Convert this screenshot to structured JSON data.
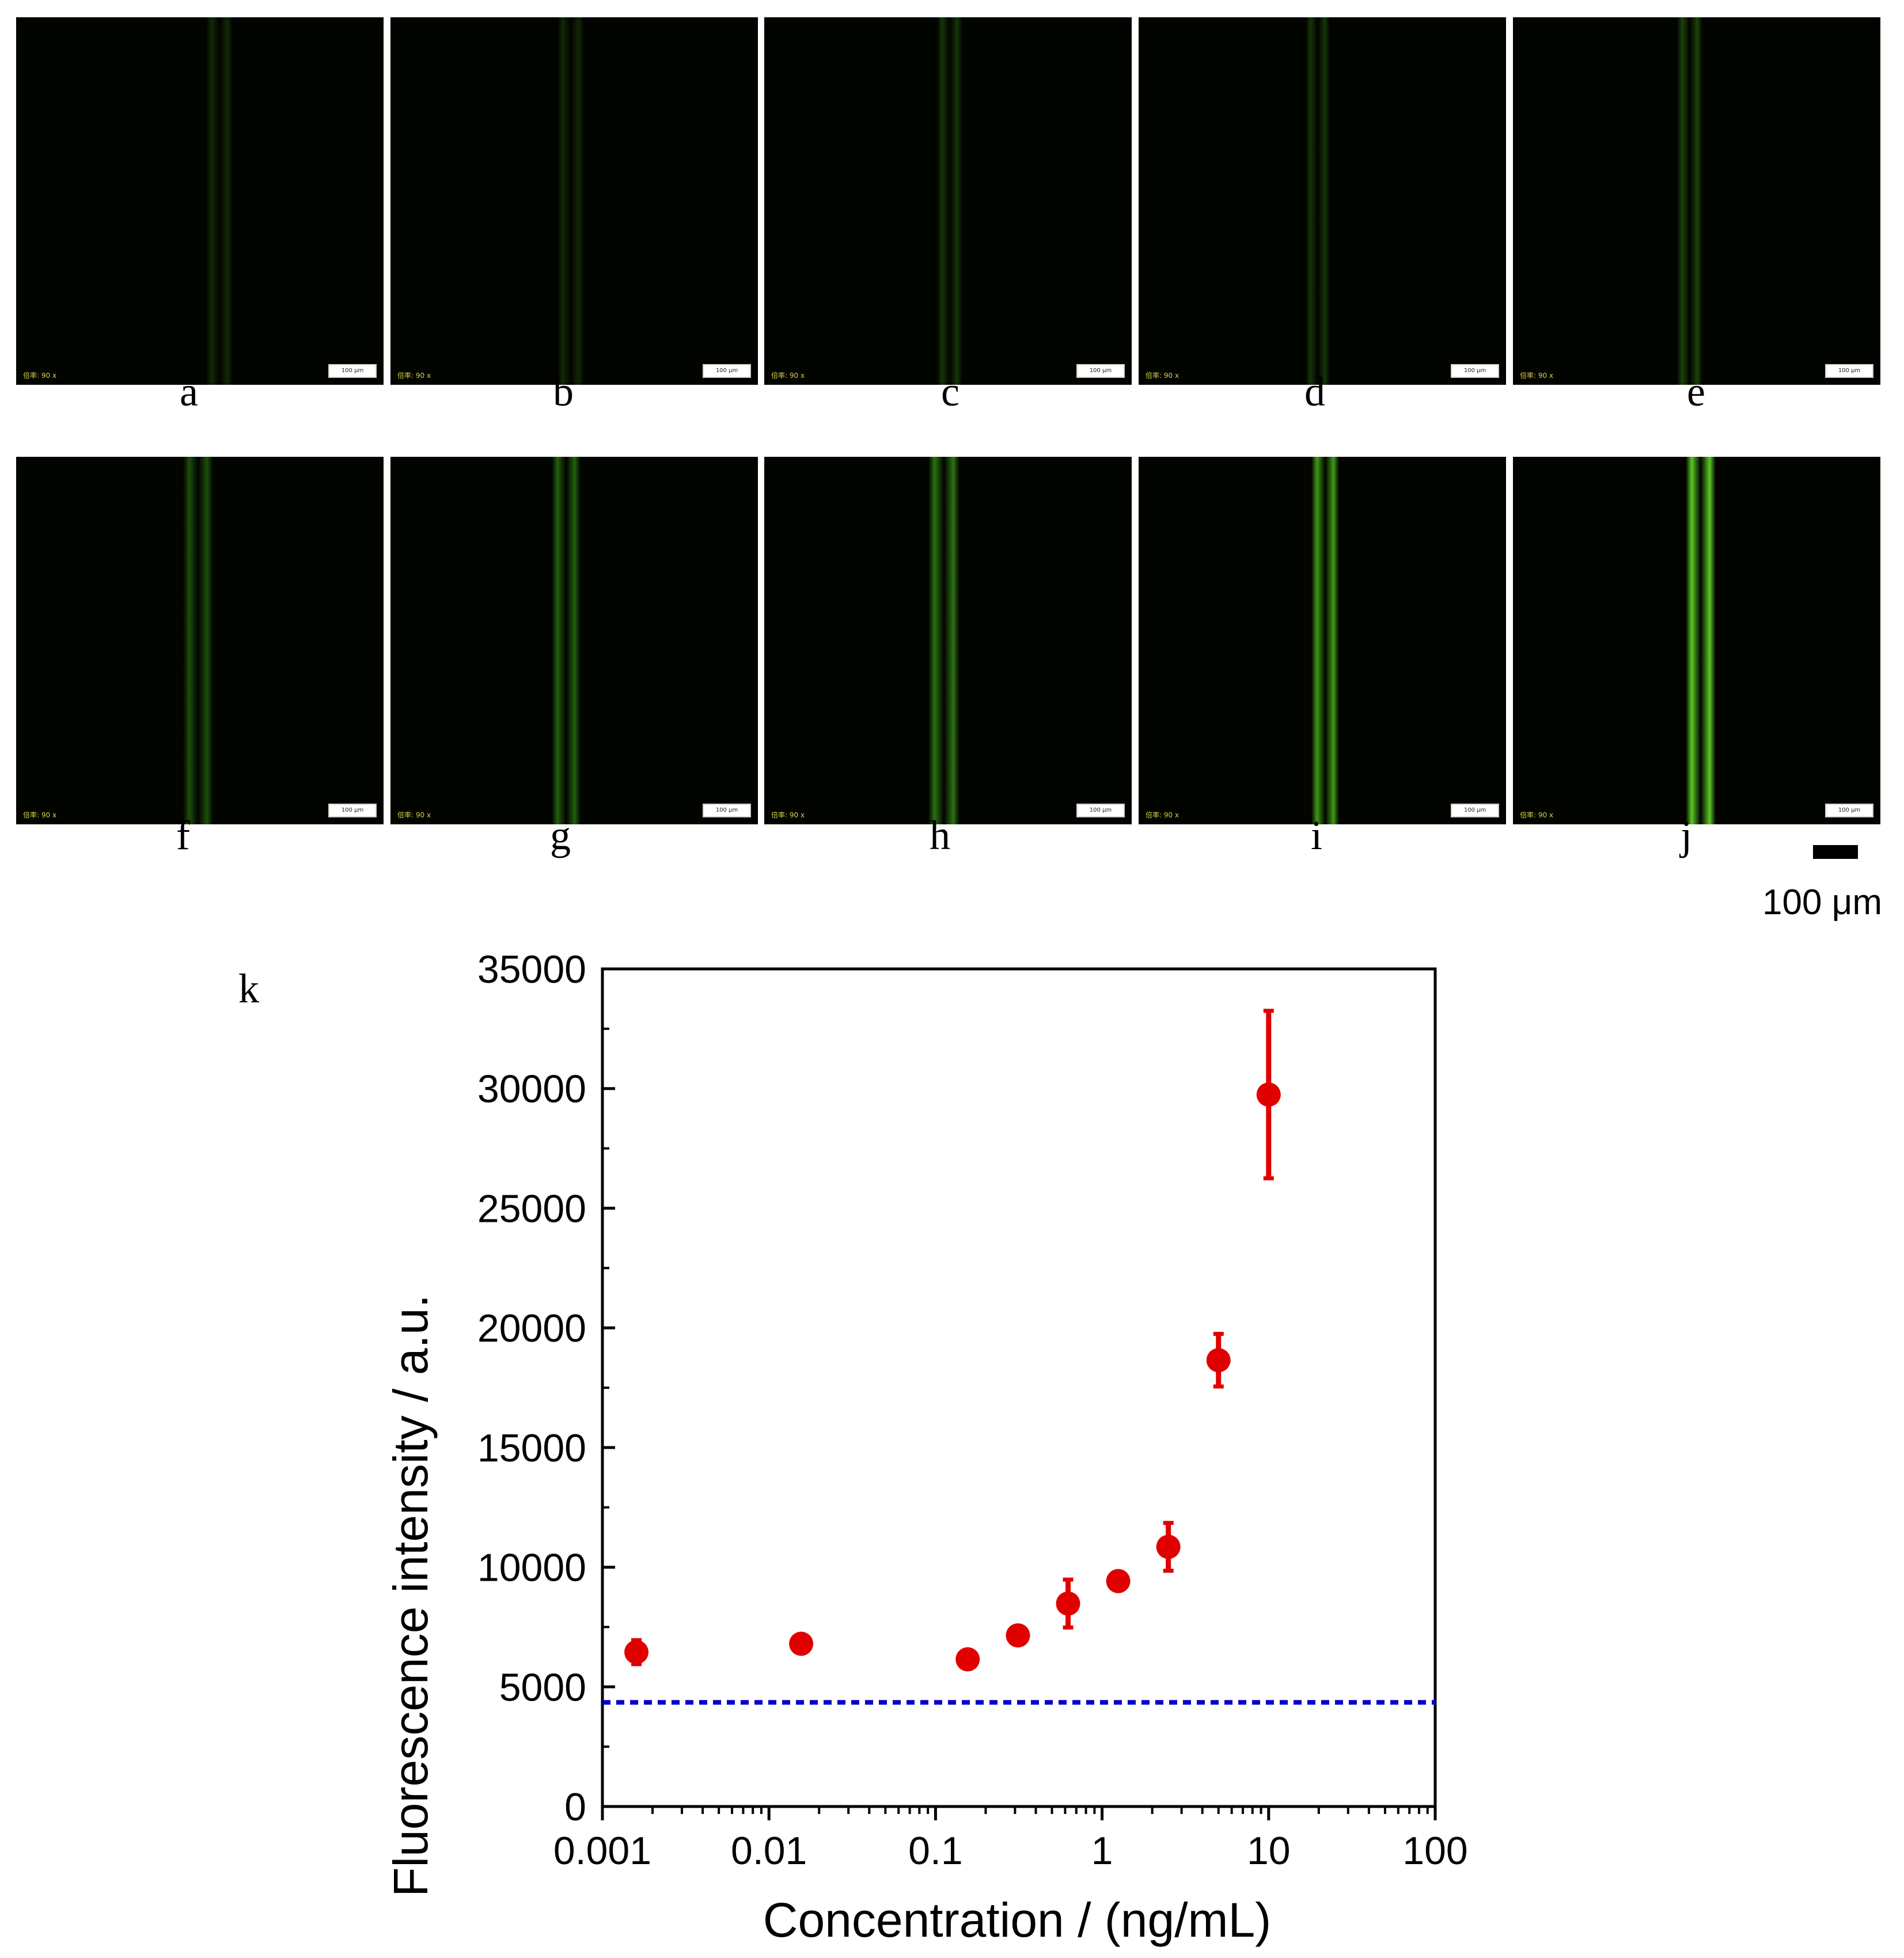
{
  "micrographs": {
    "magnification_text": "倍率: 90 x",
    "inset_scale_text": "100 μm",
    "panels": [
      {
        "letter": "a"
      },
      {
        "letter": "b"
      },
      {
        "letter": "c"
      },
      {
        "letter": "d"
      },
      {
        "letter": "e"
      },
      {
        "letter": "f"
      },
      {
        "letter": "g"
      },
      {
        "letter": "h"
      },
      {
        "letter": "i"
      },
      {
        "letter": "j"
      }
    ],
    "scale_bar_label": "100 μm"
  },
  "plot_panel_letter": "k",
  "chart_data": {
    "type": "scatter",
    "title": "",
    "xlabel": "Concentration / (ng/mL)",
    "ylabel": "Fluorescence intensity / a.u.",
    "xscale": "log",
    "xlim": [
      0.001,
      100
    ],
    "ylim": [
      0,
      35000
    ],
    "xticks": [
      0.001,
      0.01,
      0.1,
      1,
      10,
      100
    ],
    "xtick_labels": [
      "0.001",
      "0.01",
      "0.1",
      "1",
      "10",
      "100"
    ],
    "yticks": [
      0,
      5000,
      10000,
      15000,
      20000,
      25000,
      30000,
      35000
    ],
    "ytick_labels": [
      "0",
      "5000",
      "10000",
      "15000",
      "20000",
      "25000",
      "30000",
      "35000"
    ],
    "series": [
      {
        "name": "Fluorescence intensity",
        "color": "#e00000",
        "x": [
          0.0016,
          0.0156,
          0.156,
          0.3125,
          0.625,
          1.25,
          2.5,
          5,
          10
        ],
        "y": [
          6450,
          6800,
          6150,
          7150,
          8480,
          9420,
          10850,
          18650,
          29750
        ],
        "yerr": [
          500,
          200,
          200,
          300,
          1000,
          250,
          1000,
          1100,
          3500
        ]
      }
    ],
    "reference_line": {
      "y": 4350,
      "color": "#0000cc",
      "style": "dotted"
    }
  }
}
